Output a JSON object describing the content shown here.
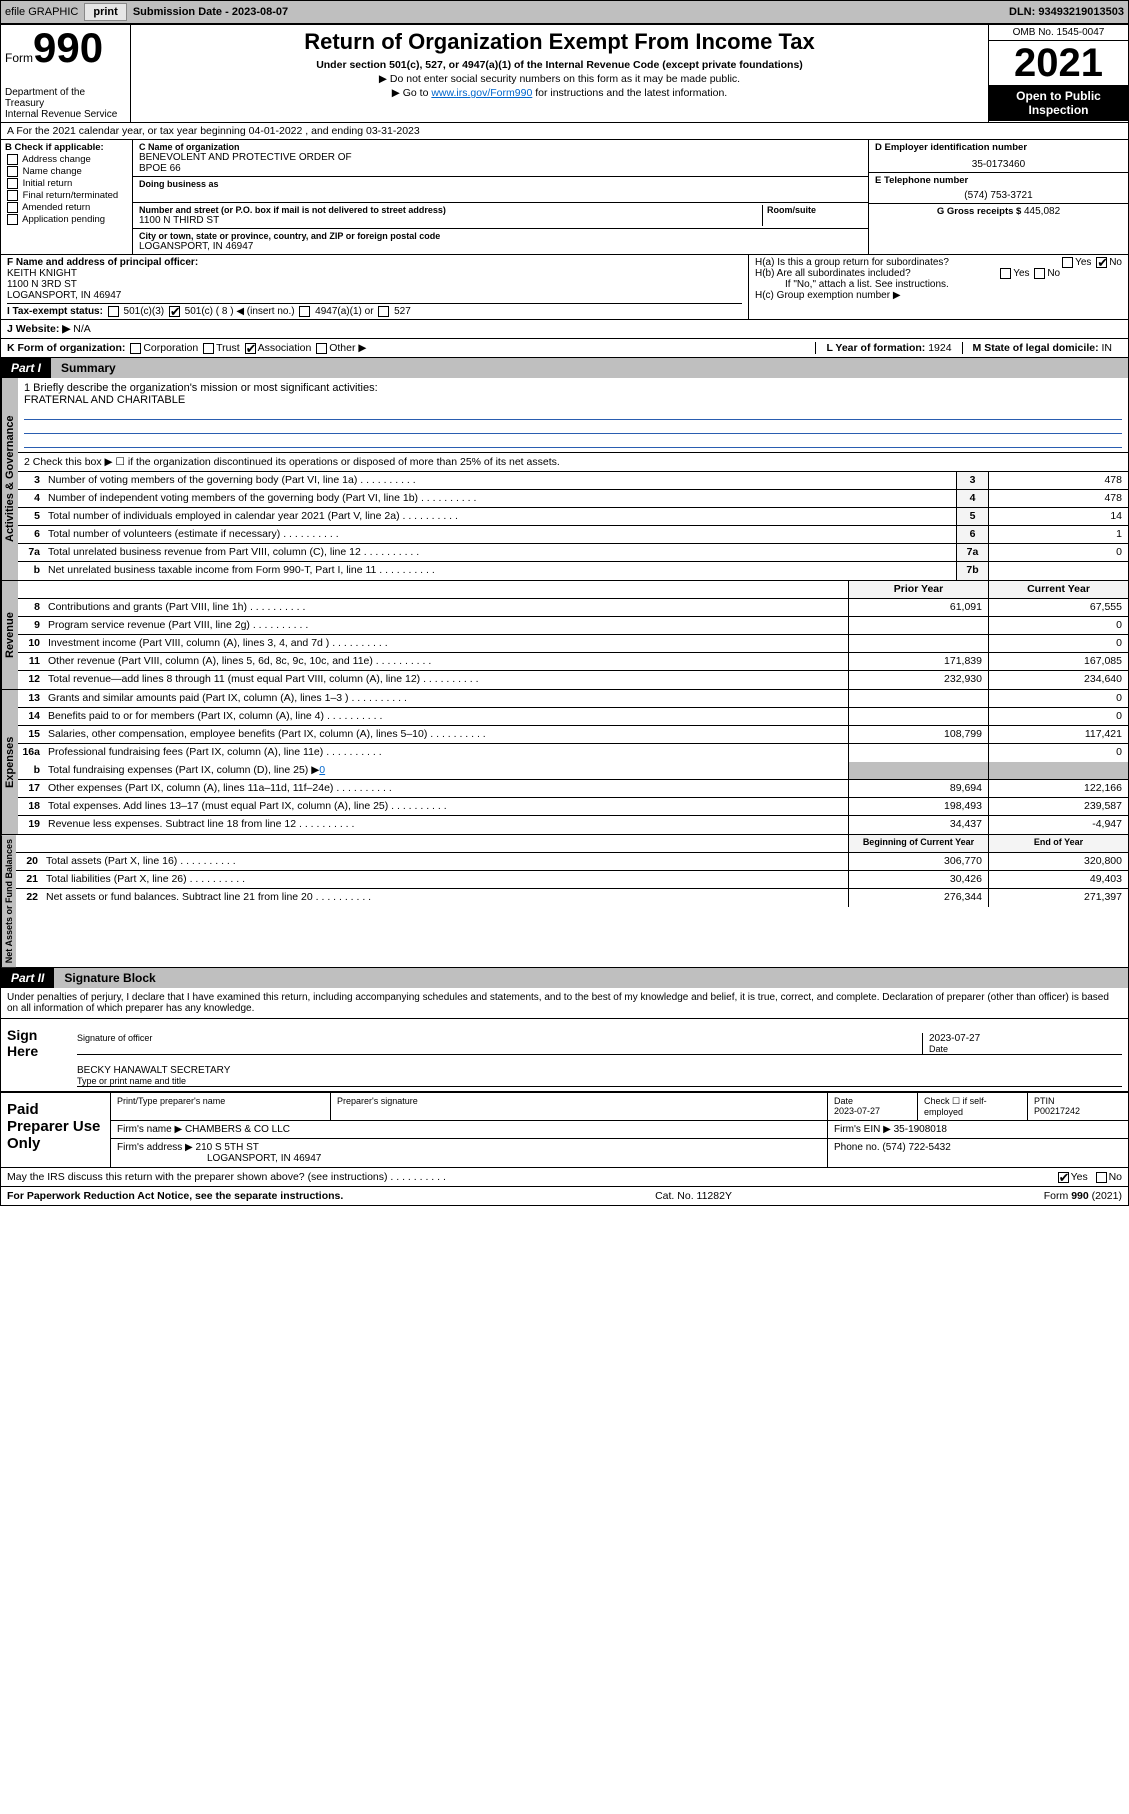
{
  "top_bar": {
    "efile": "efile GRAPHIC",
    "print": "print",
    "sub_label": "Submission Date - ",
    "sub_date": "2023-08-07",
    "dln_label": "DLN: ",
    "dln": "93493219013503"
  },
  "header": {
    "form_word": "Form",
    "form_num": "990",
    "dept": "Department of the Treasury",
    "irs": "Internal Revenue Service",
    "title": "Return of Organization Exempt From Income Tax",
    "sub1": "Under section 501(c), 527, or 4947(a)(1) of the Internal Revenue Code (except private foundations)",
    "sub2": "▶ Do not enter social security numbers on this form as it may be made public.",
    "sub3_pre": "▶ Go to ",
    "sub3_link": "www.irs.gov/Form990",
    "sub3_post": " for instructions and the latest information.",
    "omb": "OMB No. 1545-0047",
    "year": "2021",
    "open": "Open to Public Inspection"
  },
  "row_a": "A For the 2021 calendar year, or tax year beginning 04-01-2022   , and ending 03-31-2023",
  "box_b": {
    "label": "B Check if applicable:",
    "items": [
      "Address change",
      "Name change",
      "Initial return",
      "Final return/terminated",
      "Amended return",
      "Application pending"
    ]
  },
  "box_c": {
    "name_label": "C Name of organization",
    "name": "BENEVOLENT AND PROTECTIVE ORDER OF",
    "name2": "BPOE 66",
    "dba_label": "Doing business as",
    "street_label": "Number and street (or P.O. box if mail is not delivered to street address)",
    "room_label": "Room/suite",
    "street": "1100 N THIRD ST",
    "city_label": "City or town, state or province, country, and ZIP or foreign postal code",
    "city": "LOGANSPORT, IN  46947"
  },
  "box_d": {
    "label": "D Employer identification number",
    "ein": "35-0173460",
    "e_label": "E Telephone number",
    "phone": "(574) 753-3721",
    "g_label": "G Gross receipts $ ",
    "gross": "445,082"
  },
  "box_f": {
    "label": "F Name and address of principal officer:",
    "name": "KEITH KNIGHT",
    "addr1": "1100 N 3RD ST",
    "addr2": "LOGANSPORT, IN  46947"
  },
  "box_h": {
    "ha": "H(a)  Is this a group return for subordinates?",
    "hb": "H(b)  Are all subordinates included?",
    "hb_note": "If \"No,\" attach a list. See instructions.",
    "hc": "H(c)  Group exemption number ▶"
  },
  "row_i": {
    "label": "I   Tax-exempt status:",
    "opts": [
      "501(c)(3)",
      "501(c) ( 8 ) ◀ (insert no.)",
      "4947(a)(1) or",
      "527"
    ]
  },
  "row_j": {
    "label": "J   Website: ▶",
    "val": "N/A"
  },
  "row_k": {
    "label": "K Form of organization:",
    "opts": [
      "Corporation",
      "Trust",
      "Association",
      "Other ▶"
    ],
    "l_label": "L Year of formation: ",
    "l_val": "1924",
    "m_label": "M State of legal domicile: ",
    "m_val": "IN"
  },
  "part1": {
    "label": "Part I",
    "title": "Summary"
  },
  "mission": {
    "q": "1   Briefly describe the organization's mission or most significant activities:",
    "text": "FRATERNAL AND CHARITABLE"
  },
  "line2": "2   Check this box ▶ ☐  if the organization discontinued its operations or disposed of more than 25% of its net assets.",
  "gov_lines": [
    {
      "num": "3",
      "text": "Number of voting members of the governing body (Part VI, line 1a)",
      "box": "3",
      "val": "478"
    },
    {
      "num": "4",
      "text": "Number of independent voting members of the governing body (Part VI, line 1b)",
      "box": "4",
      "val": "478"
    },
    {
      "num": "5",
      "text": "Total number of individuals employed in calendar year 2021 (Part V, line 2a)",
      "box": "5",
      "val": "14"
    },
    {
      "num": "6",
      "text": "Total number of volunteers (estimate if necessary)",
      "box": "6",
      "val": "1"
    },
    {
      "num": "7a",
      "text": "Total unrelated business revenue from Part VIII, column (C), line 12",
      "box": "7a",
      "val": "0"
    },
    {
      "num": "b",
      "text": "Net unrelated business taxable income from Form 990-T, Part I, line 11",
      "box": "7b",
      "val": ""
    }
  ],
  "col_headers": {
    "prior": "Prior Year",
    "current": "Current Year"
  },
  "revenue_label": "Revenue",
  "revenue_lines": [
    {
      "num": "8",
      "text": "Contributions and grants (Part VIII, line 1h)",
      "prior": "61,091",
      "cur": "67,555"
    },
    {
      "num": "9",
      "text": "Program service revenue (Part VIII, line 2g)",
      "prior": "",
      "cur": "0"
    },
    {
      "num": "10",
      "text": "Investment income (Part VIII, column (A), lines 3, 4, and 7d )",
      "prior": "",
      "cur": "0"
    },
    {
      "num": "11",
      "text": "Other revenue (Part VIII, column (A), lines 5, 6d, 8c, 9c, 10c, and 11e)",
      "prior": "171,839",
      "cur": "167,085"
    },
    {
      "num": "12",
      "text": "Total revenue—add lines 8 through 11 (must equal Part VIII, column (A), line 12)",
      "prior": "232,930",
      "cur": "234,640"
    }
  ],
  "expenses_label": "Expenses",
  "expense_lines": [
    {
      "num": "13",
      "text": "Grants and similar amounts paid (Part IX, column (A), lines 1–3 )",
      "prior": "",
      "cur": "0"
    },
    {
      "num": "14",
      "text": "Benefits paid to or for members (Part IX, column (A), line 4)",
      "prior": "",
      "cur": "0"
    },
    {
      "num": "15",
      "text": "Salaries, other compensation, employee benefits (Part IX, column (A), lines 5–10)",
      "prior": "108,799",
      "cur": "117,421"
    },
    {
      "num": "16a",
      "text": "Professional fundraising fees (Part IX, column (A), line 11e)",
      "prior": "",
      "cur": "0"
    }
  ],
  "line16b": {
    "num": "b",
    "text": "Total fundraising expenses (Part IX, column (D), line 25) ▶",
    "val": "0"
  },
  "expense_lines2": [
    {
      "num": "17",
      "text": "Other expenses (Part IX, column (A), lines 11a–11d, 11f–24e)",
      "prior": "89,694",
      "cur": "122,166"
    },
    {
      "num": "18",
      "text": "Total expenses. Add lines 13–17 (must equal Part IX, column (A), line 25)",
      "prior": "198,493",
      "cur": "239,587"
    },
    {
      "num": "19",
      "text": "Revenue less expenses. Subtract line 18 from line 12",
      "prior": "34,437",
      "cur": "-4,947"
    }
  ],
  "net_label": "Net Assets or Fund Balances",
  "net_headers": {
    "beg": "Beginning of Current Year",
    "end": "End of Year"
  },
  "net_lines": [
    {
      "num": "20",
      "text": "Total assets (Part X, line 16)",
      "prior": "306,770",
      "cur": "320,800"
    },
    {
      "num": "21",
      "text": "Total liabilities (Part X, line 26)",
      "prior": "30,426",
      "cur": "49,403"
    },
    {
      "num": "22",
      "text": "Net assets or fund balances. Subtract line 21 from line 20",
      "prior": "276,344",
      "cur": "271,397"
    }
  ],
  "part2": {
    "label": "Part II",
    "title": "Signature Block"
  },
  "declaration": "Under penalties of perjury, I declare that I have examined this return, including accompanying schedules and statements, and to the best of my knowledge and belief, it is true, correct, and complete. Declaration of preparer (other than officer) is based on all information of which preparer has any knowledge.",
  "sign": {
    "label": "Sign Here",
    "sig_label": "Signature of officer",
    "date": "2023-07-27",
    "date_label": "Date",
    "name": "BECKY HANAWALT SECRETARY",
    "name_label": "Type or print name and title"
  },
  "preparer": {
    "label": "Paid Preparer Use Only",
    "h1": "Print/Type preparer's name",
    "h2": "Preparer's signature",
    "h3": "Date",
    "date": "2023-07-27",
    "h4": "Check ☐ if self-employed",
    "h5": "PTIN",
    "ptin": "P00217242",
    "firm_name_label": "Firm's name    ▶",
    "firm_name": "CHAMBERS & CO LLC",
    "firm_ein_label": "Firm's EIN ▶",
    "firm_ein": "35-1908018",
    "firm_addr_label": "Firm's address ▶",
    "firm_addr1": "210 S 5TH ST",
    "firm_addr2": "LOGANSPORT, IN  46947",
    "phone_label": "Phone no. ",
    "phone": "(574) 722-5432"
  },
  "discuss": "May the IRS discuss this return with the preparer shown above? (see instructions)",
  "footer": {
    "left": "For Paperwork Reduction Act Notice, see the separate instructions.",
    "mid": "Cat. No. 11282Y",
    "right_pre": "Form ",
    "right_form": "990",
    "right_post": " (2021)"
  },
  "gov_label": "Activities & Governance"
}
